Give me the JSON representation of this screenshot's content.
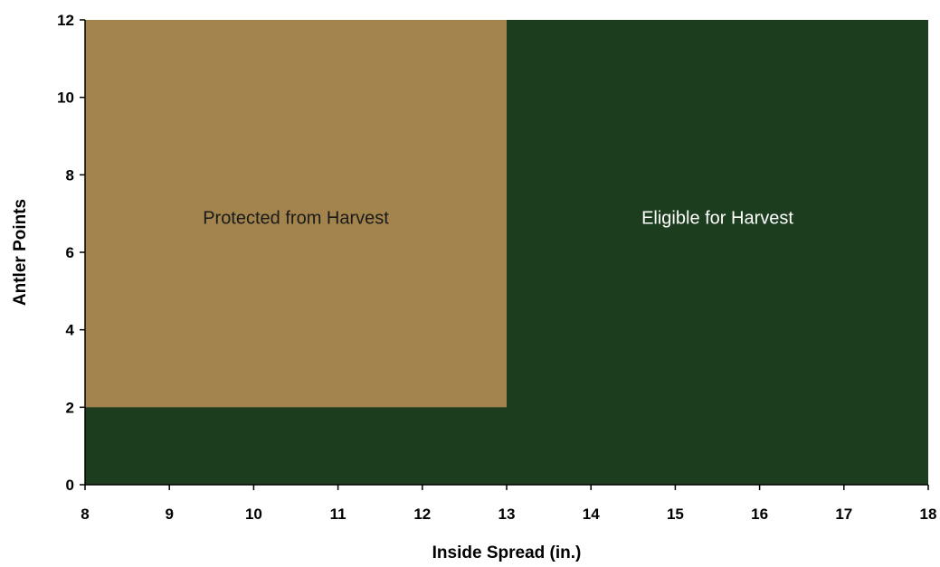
{
  "chart_data": {
    "type": "area",
    "title": "",
    "xlabel": "Inside Spread (in.)",
    "ylabel": "Antler Points",
    "xlim": [
      8,
      18
    ],
    "ylim": [
      0,
      12
    ],
    "xticks": [
      8,
      9,
      10,
      11,
      12,
      13,
      14,
      15,
      16,
      17,
      18
    ],
    "yticks": [
      0,
      2,
      4,
      6,
      8,
      10,
      12
    ],
    "grid": false,
    "regions": [
      {
        "name": "Eligible for Harvest",
        "label": "Eligible for Harvest",
        "color": "#1c3d1e",
        "label_color": "#ffffff",
        "x": [
          8,
          18
        ],
        "y": [
          0,
          12
        ]
      },
      {
        "name": "Protected from Harvest",
        "label": "Protected from Harvest",
        "color": "#a2844c",
        "label_color": "#1a1a1a",
        "x": [
          8,
          13
        ],
        "y": [
          2,
          12
        ]
      }
    ],
    "label_positions": [
      {
        "region": "Protected from Harvest",
        "x": 10.5,
        "y": 6.9
      },
      {
        "region": "Eligible for Harvest",
        "x": 15.5,
        "y": 6.9
      }
    ]
  }
}
